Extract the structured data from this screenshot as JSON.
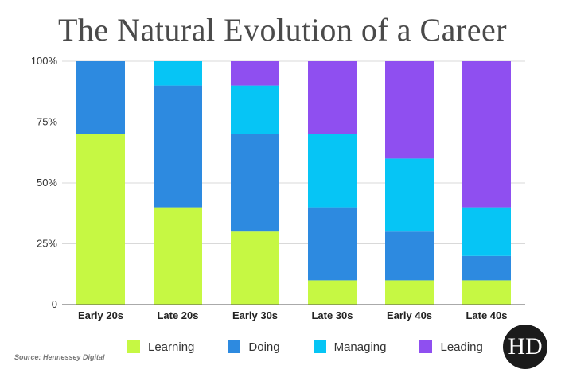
{
  "chart_data": {
    "type": "bar",
    "stacked": true,
    "title": "The Natural Evolution of a Career",
    "categories": [
      "Early 20s",
      "Late 20s",
      "Early 30s",
      "Late 30s",
      "Early 40s",
      "Late 40s"
    ],
    "series": [
      {
        "name": "Learning",
        "color": "#c6f843",
        "values": [
          70,
          40,
          30,
          10,
          10,
          10
        ]
      },
      {
        "name": "Doing",
        "color": "#2d8ae0",
        "values": [
          30,
          50,
          40,
          30,
          20,
          10
        ]
      },
      {
        "name": "Managing",
        "color": "#06c5f5",
        "values": [
          0,
          10,
          20,
          30,
          30,
          20
        ]
      },
      {
        "name": "Leading",
        "color": "#8f4ff0",
        "values": [
          0,
          0,
          10,
          30,
          40,
          60
        ]
      }
    ],
    "ylim": [
      0,
      100
    ],
    "y_ticks": [
      "0",
      "25%",
      "50%",
      "75%",
      "100%"
    ],
    "y_tick_values": [
      0,
      25,
      50,
      75,
      100
    ],
    "grid": true,
    "legend_position": "bottom"
  },
  "source": "Source: Hennessey Digital",
  "logo_text": "HD"
}
